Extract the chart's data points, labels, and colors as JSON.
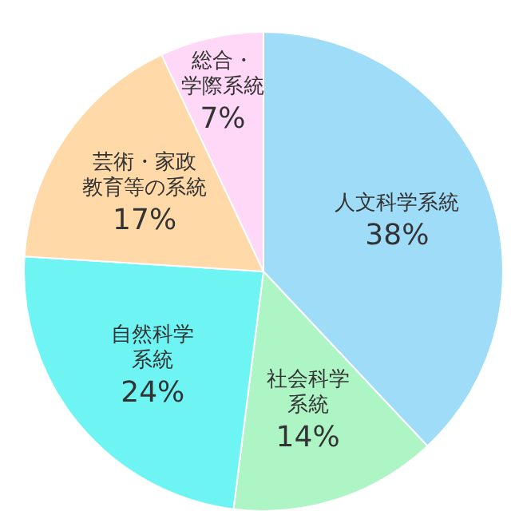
{
  "chart_data": {
    "type": "pie",
    "categories": [
      "人文科学系統",
      "社会科学系統",
      "自然科学系統",
      "芸術・家政教育等の系統",
      "総合・学際系統"
    ],
    "values": [
      38,
      14,
      24,
      17,
      7
    ],
    "value_labels": [
      "38%",
      "14%",
      "24%",
      "17%",
      "7%"
    ],
    "colors": [
      "#9fdcf8",
      "#aef5c6",
      "#6ff4f4",
      "#ffd9a8",
      "#ffd8f8"
    ]
  }
}
